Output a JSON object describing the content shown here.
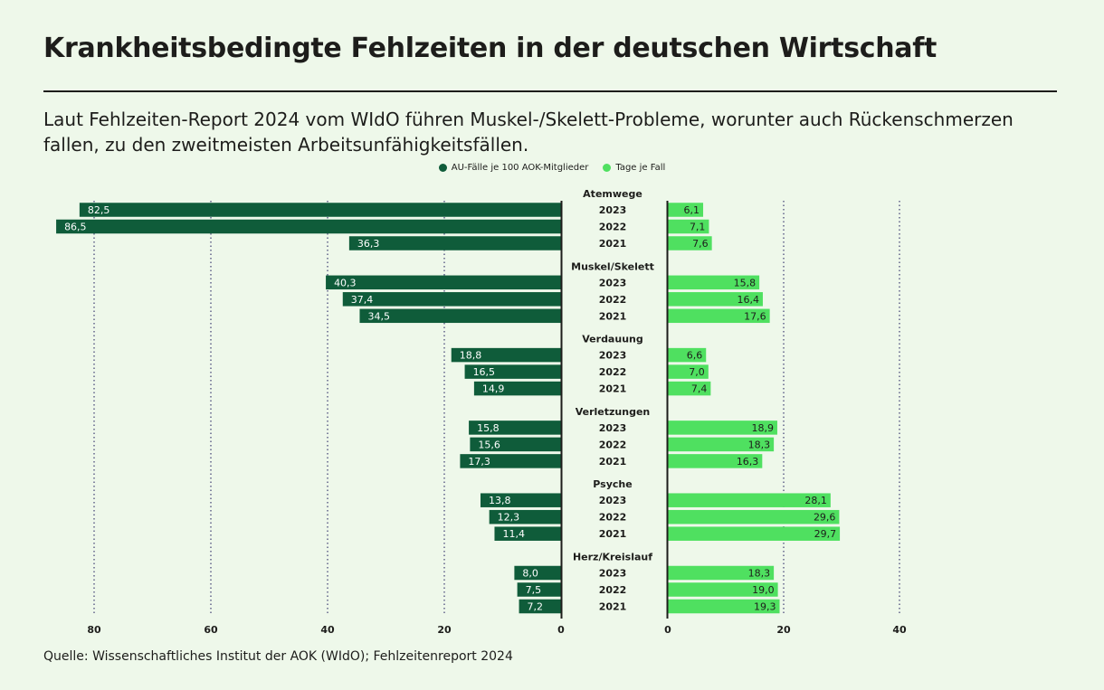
{
  "header": {
    "title": "Krankheitsbedingte Fehlzeiten in der deutschen Wirtschaft",
    "subtitle": "Laut Fehlzeiten-Report 2024 vom WIdO führen Muskel-/Skelett-Probleme, worunter auch Rückenschmerzen fallen, zu den zweitmeisten Arbeitsunfähigkeitsfällen."
  },
  "source": "Quelle: Wissenschaftliches Institut der AOK (WIdO); Fehlzeitenreport 2024",
  "colors": {
    "left_bar": "#0f5c3a",
    "right_bar": "#4fe060",
    "background": "#eef8ea",
    "text": "#1d1d1b",
    "grid": "#4a4a7a"
  },
  "chart_data": {
    "type": "bar",
    "orientation": "horizontal-diverging",
    "title": "Krankheitsbedingte Fehlzeiten in der deutschen Wirtschaft",
    "legend": [
      "AU-Fälle je 100 AOK-Mitglieder",
      "Tage je Fall"
    ],
    "legend_position": "top-center",
    "left_axis": {
      "ticks": [
        80,
        60,
        40,
        20,
        0
      ],
      "range": [
        0,
        86.5
      ]
    },
    "right_axis": {
      "ticks": [
        0,
        20,
        40
      ],
      "range": [
        0,
        40
      ]
    },
    "groups": [
      {
        "name": "Atemwege",
        "rows": [
          {
            "year": "2023",
            "au": 82.5,
            "au_label": "82,5",
            "tage": 6.1,
            "tage_label": "6,1"
          },
          {
            "year": "2022",
            "au": 86.5,
            "au_label": "86,5",
            "tage": 7.1,
            "tage_label": "7,1"
          },
          {
            "year": "2021",
            "au": 36.3,
            "au_label": "36,3",
            "tage": 7.6,
            "tage_label": "7,6"
          }
        ]
      },
      {
        "name": "Muskel/Skelett",
        "rows": [
          {
            "year": "2023",
            "au": 40.3,
            "au_label": "40,3",
            "tage": 15.8,
            "tage_label": "15,8"
          },
          {
            "year": "2022",
            "au": 37.4,
            "au_label": "37,4",
            "tage": 16.4,
            "tage_label": "16,4"
          },
          {
            "year": "2021",
            "au": 34.5,
            "au_label": "34,5",
            "tage": 17.6,
            "tage_label": "17,6"
          }
        ]
      },
      {
        "name": "Verdauung",
        "rows": [
          {
            "year": "2023",
            "au": 18.8,
            "au_label": "18,8",
            "tage": 6.6,
            "tage_label": "6,6"
          },
          {
            "year": "2022",
            "au": 16.5,
            "au_label": "16,5",
            "tage": 7.0,
            "tage_label": "7,0"
          },
          {
            "year": "2021",
            "au": 14.9,
            "au_label": "14,9",
            "tage": 7.4,
            "tage_label": "7,4"
          }
        ]
      },
      {
        "name": "Verletzungen",
        "rows": [
          {
            "year": "2023",
            "au": 15.8,
            "au_label": "15,8",
            "tage": 18.9,
            "tage_label": "18,9"
          },
          {
            "year": "2022",
            "au": 15.6,
            "au_label": "15,6",
            "tage": 18.3,
            "tage_label": "18,3"
          },
          {
            "year": "2021",
            "au": 17.3,
            "au_label": "17,3",
            "tage": 16.3,
            "tage_label": "16,3"
          }
        ]
      },
      {
        "name": "Psyche",
        "rows": [
          {
            "year": "2023",
            "au": 13.8,
            "au_label": "13,8",
            "tage": 28.1,
            "tage_label": "28,1"
          },
          {
            "year": "2022",
            "au": 12.3,
            "au_label": "12,3",
            "tage": 29.6,
            "tage_label": "29,6"
          },
          {
            "year": "2021",
            "au": 11.4,
            "au_label": "11,4",
            "tage": 29.7,
            "tage_label": "29,7"
          }
        ]
      },
      {
        "name": "Herz/Kreislauf",
        "rows": [
          {
            "year": "2023",
            "au": 8.0,
            "au_label": "8,0",
            "tage": 18.3,
            "tage_label": "18,3"
          },
          {
            "year": "2022",
            "au": 7.5,
            "au_label": "7,5",
            "tage": 19.0,
            "tage_label": "19,0"
          },
          {
            "year": "2021",
            "au": 7.2,
            "au_label": "7,2",
            "tage": 19.3,
            "tage_label": "19,3"
          }
        ]
      }
    ]
  }
}
